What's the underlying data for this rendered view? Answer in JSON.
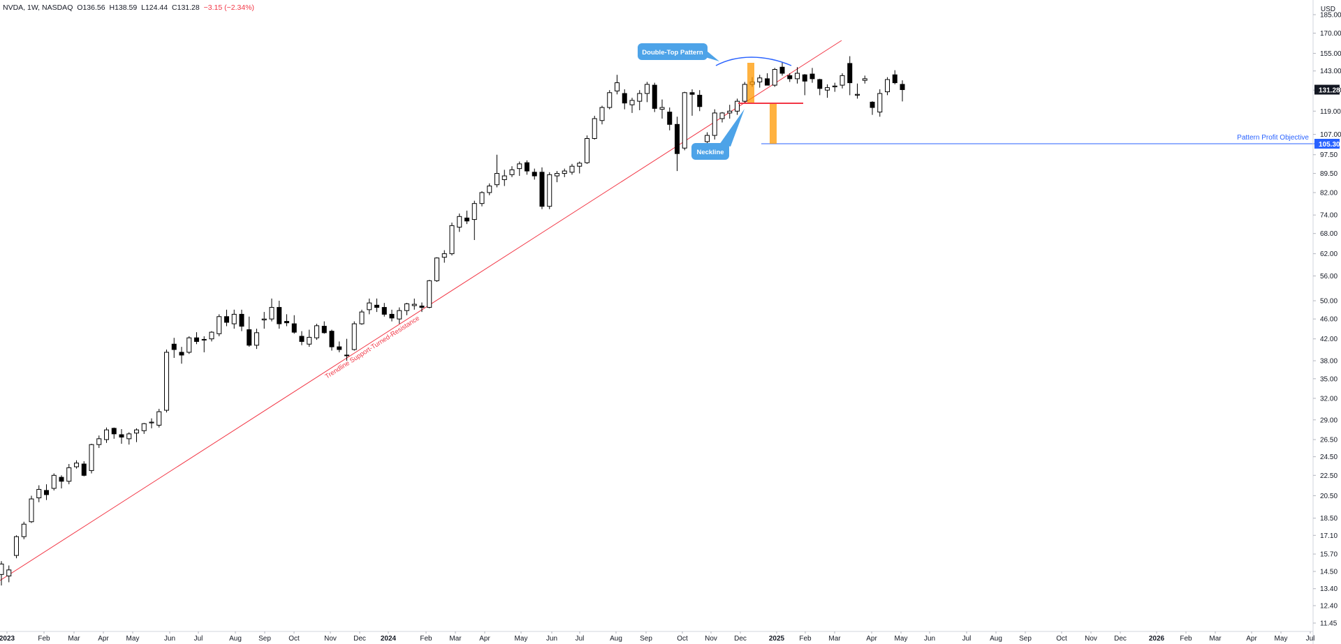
{
  "header": {
    "symbol": "NVDA, 1W, NASDAQ",
    "open": "O136.56",
    "high": "H138.59",
    "low": "L124.44",
    "close": "C131.28",
    "change": "−3.15 (−2.34%)"
  },
  "currency": "USD",
  "colors": {
    "trendline": "#f23645",
    "neckline": "#f23645",
    "double_top_arc": "#2962ff",
    "objective_line": "#2962ff",
    "orange_bar": "#ff9800",
    "callout": "#4da3e8",
    "price_tag_bg": "#131722",
    "objective_tag_bg": "#2962ff"
  },
  "chart_data": {
    "type": "candlestick",
    "scale": "log",
    "x_axis_labels": [
      "2023",
      "Feb",
      "Mar",
      "Apr",
      "May",
      "Jun",
      "Jul",
      "Aug",
      "Sep",
      "Oct",
      "Nov",
      "Dec",
      "2024",
      "Feb",
      "Mar",
      "Apr",
      "May",
      "Jun",
      "Jul",
      "Aug",
      "Sep",
      "Oct",
      "Nov",
      "Dec",
      "2025",
      "Feb",
      "Mar",
      "Apr",
      "May",
      "Jun",
      "Jul",
      "Aug",
      "Sep",
      "Oct",
      "Nov",
      "Dec",
      "2026",
      "Feb",
      "Mar",
      "Apr",
      "May",
      "Jul"
    ],
    "y_axis_labels": [
      185,
      170,
      155,
      143,
      131,
      119,
      107,
      97.5,
      89.5,
      82,
      74,
      68,
      62,
      56,
      50,
      46,
      42,
      38,
      35,
      32,
      29,
      26.5,
      24.5,
      22.5,
      20.5,
      18.5,
      17.1,
      15.7,
      14.5,
      13.4,
      12.4,
      11.45
    ],
    "ylim": [
      11.0,
      200.0
    ],
    "last_price": "131.28",
    "objective_price": "105.30",
    "annotations": {
      "double_top": "Double-Top Pattern",
      "neckline": "Neckline",
      "objective": "Pattern Profit Objective",
      "trendline": "Trendline Support-Turned-Resistance"
    },
    "candles": [
      [
        14.3,
        15.2,
        13.6,
        15.0
      ],
      [
        14.2,
        14.9,
        13.8,
        14.6
      ],
      [
        15.6,
        17.1,
        15.4,
        17.0
      ],
      [
        17.0,
        18.2,
        16.8,
        18.0
      ],
      [
        18.2,
        20.5,
        18.1,
        20.2
      ],
      [
        20.3,
        21.5,
        19.9,
        21.1
      ],
      [
        21.0,
        21.6,
        20.1,
        20.6
      ],
      [
        21.2,
        22.7,
        21.0,
        22.5
      ],
      [
        22.3,
        22.5,
        21.2,
        21.9
      ],
      [
        21.9,
        23.7,
        21.6,
        23.3
      ],
      [
        23.4,
        24.1,
        23.2,
        23.8
      ],
      [
        23.7,
        24.0,
        22.4,
        22.5
      ],
      [
        23.0,
        26.0,
        22.7,
        25.9
      ],
      [
        25.9,
        27.0,
        25.5,
        26.6
      ],
      [
        26.5,
        28.0,
        26.1,
        27.7
      ],
      [
        27.9,
        28.0,
        26.6,
        27.2
      ],
      [
        27.1,
        27.8,
        26.0,
        26.8
      ],
      [
        26.6,
        27.4,
        25.9,
        27.2
      ],
      [
        27.3,
        27.9,
        26.2,
        27.7
      ],
      [
        27.6,
        28.6,
        27.2,
        28.5
      ],
      [
        28.6,
        29.2,
        27.9,
        28.7
      ],
      [
        28.3,
        30.5,
        28.0,
        30.1
      ],
      [
        30.3,
        40.0,
        30.0,
        39.5
      ],
      [
        41.0,
        42.2,
        38.5,
        40.0
      ],
      [
        39.5,
        40.5,
        37.5,
        39.0
      ],
      [
        39.5,
        42.5,
        39.2,
        42.2
      ],
      [
        42.2,
        43.3,
        41.0,
        41.5
      ],
      [
        41.8,
        42.5,
        39.5,
        41.9
      ],
      [
        42.0,
        43.5,
        41.5,
        43.3
      ],
      [
        43.0,
        47.0,
        42.5,
        46.5
      ],
      [
        46.5,
        48.0,
        44.5,
        45.3
      ],
      [
        45.0,
        48.0,
        44.0,
        47.0
      ],
      [
        47.0,
        48.0,
        43.5,
        44.5
      ],
      [
        43.8,
        46.5,
        40.5,
        40.8
      ],
      [
        40.8,
        44.0,
        40.1,
        43.2
      ],
      [
        45.8,
        47.5,
        44.0,
        46.0
      ],
      [
        46.0,
        50.5,
        45.5,
        48.5
      ],
      [
        48.5,
        50.0,
        44.0,
        45.0
      ],
      [
        45.5,
        47.0,
        44.5,
        45.2
      ],
      [
        45.0,
        46.8,
        43.0,
        43.3
      ],
      [
        42.5,
        43.5,
        40.8,
        41.5
      ],
      [
        41.0,
        43.8,
        40.5,
        42.3
      ],
      [
        42.2,
        45.0,
        41.8,
        44.6
      ],
      [
        44.5,
        45.5,
        43.0,
        43.2
      ],
      [
        43.5,
        43.8,
        39.8,
        40.5
      ],
      [
        40.5,
        41.5,
        39.5,
        40.0
      ],
      [
        39.0,
        42.0,
        38.0,
        39.0
      ],
      [
        40.0,
        45.5,
        39.8,
        45.0
      ],
      [
        45.0,
        48.0,
        44.8,
        47.5
      ],
      [
        48.0,
        50.5,
        47.0,
        49.5
      ],
      [
        49.0,
        50.5,
        47.5,
        48.5
      ],
      [
        48.5,
        49.5,
        46.5,
        47.0
      ],
      [
        47.0,
        48.0,
        45.5,
        46.2
      ],
      [
        46.0,
        48.5,
        45.0,
        47.8
      ],
      [
        47.8,
        49.5,
        46.8,
        49.3
      ],
      [
        48.9,
        50.5,
        48.0,
        49.2
      ],
      [
        48.8,
        49.6,
        47.5,
        48.5
      ],
      [
        48.5,
        55.0,
        48.3,
        54.8
      ],
      [
        54.8,
        61.0,
        54.5,
        60.8
      ],
      [
        61.0,
        63.0,
        59.5,
        62.0
      ],
      [
        62.0,
        71.5,
        61.5,
        70.5
      ],
      [
        70.0,
        74.5,
        68.5,
        73.5
      ],
      [
        73.0,
        75.5,
        71.0,
        72.0
      ],
      [
        72.5,
        79.0,
        66.0,
        78.0
      ],
      [
        78.0,
        82.5,
        77.0,
        82.0
      ],
      [
        82.0,
        85.5,
        81.0,
        84.5
      ],
      [
        85.0,
        97.5,
        84.0,
        89.5
      ],
      [
        87.0,
        91.0,
        84.5,
        88.5
      ],
      [
        89.0,
        92.5,
        88.0,
        91.0
      ],
      [
        91.5,
        94.5,
        88.5,
        93.5
      ],
      [
        94.0,
        95.0,
        89.0,
        90.5
      ],
      [
        90.0,
        91.5,
        87.0,
        88.5
      ],
      [
        90.0,
        92.0,
        76.0,
        77.0
      ],
      [
        77.0,
        90.0,
        76.0,
        89.0
      ],
      [
        88.5,
        90.5,
        86.0,
        89.5
      ],
      [
        89.5,
        91.5,
        88.0,
        90.5
      ],
      [
        90.0,
        93.5,
        89.0,
        92.5
      ],
      [
        92.5,
        94.5,
        89.5,
        93.8
      ],
      [
        94.0,
        106.5,
        93.5,
        105.0
      ],
      [
        105.0,
        116.5,
        104.5,
        115.0
      ],
      [
        114.0,
        122.0,
        112.0,
        121.0
      ],
      [
        121.0,
        131.0,
        120.0,
        129.5
      ],
      [
        130.5,
        140.5,
        128.5,
        135.5
      ],
      [
        129.0,
        131.5,
        120.0,
        123.5
      ],
      [
        122.5,
        126.5,
        118.0,
        125.0
      ],
      [
        124.5,
        131.0,
        119.5,
        129.0
      ],
      [
        129.0,
        136.0,
        124.0,
        134.5
      ],
      [
        134.0,
        135.5,
        118.5,
        120.5
      ],
      [
        120.0,
        125.5,
        115.0,
        121.0
      ],
      [
        118.5,
        121.0,
        109.0,
        112.0
      ],
      [
        112.0,
        116.0,
        90.5,
        98.0
      ],
      [
        100.5,
        130.0,
        99.5,
        129.5
      ],
      [
        129.5,
        131.5,
        116.5,
        128.5
      ],
      [
        128.0,
        131.0,
        119.0,
        121.5
      ],
      [
        103.5,
        108.0,
        102.0,
        106.5
      ],
      [
        106.5,
        120.0,
        104.5,
        118.0
      ],
      [
        115.0,
        118.5,
        113.0,
        118.0
      ],
      [
        118.0,
        122.5,
        115.0,
        119.0
      ],
      [
        119.0,
        126.0,
        117.0,
        124.5
      ],
      [
        124.5,
        136.0,
        123.5,
        134.5
      ],
      [
        134.5,
        139.0,
        133.0,
        136.0
      ],
      [
        136.0,
        140.5,
        132.5,
        138.5
      ],
      [
        138.0,
        141.5,
        134.0,
        134.0
      ],
      [
        134.0,
        145.0,
        133.0,
        144.0
      ],
      [
        145.5,
        149.0,
        140.0,
        141.5
      ],
      [
        140.0,
        141.5,
        136.0,
        138.0
      ],
      [
        138.0,
        145.5,
        135.0,
        141.5
      ],
      [
        140.5,
        141.0,
        128.0,
        136.5
      ],
      [
        141.0,
        145.0,
        135.5,
        138.0
      ],
      [
        137.5,
        138.0,
        128.0,
        132.0
      ],
      [
        131.0,
        134.5,
        126.5,
        132.5
      ],
      [
        133.0,
        135.5,
        130.0,
        133.5
      ],
      [
        134.0,
        141.5,
        132.0,
        140.0
      ],
      [
        148.0,
        153.0,
        128.0,
        135.5
      ],
      [
        128.0,
        135.0,
        126.0,
        128.5
      ],
      [
        137.0,
        140.0,
        135.0,
        138.0
      ],
      [
        124.0,
        124.5,
        117.0,
        121.0
      ],
      [
        118.5,
        131.5,
        116.0,
        129.0
      ],
      [
        130.0,
        139.0,
        128.0,
        137.5
      ],
      [
        140.5,
        143.5,
        134.5,
        135.5
      ],
      [
        134.5,
        137.0,
        124.4,
        131.3
      ]
    ]
  }
}
